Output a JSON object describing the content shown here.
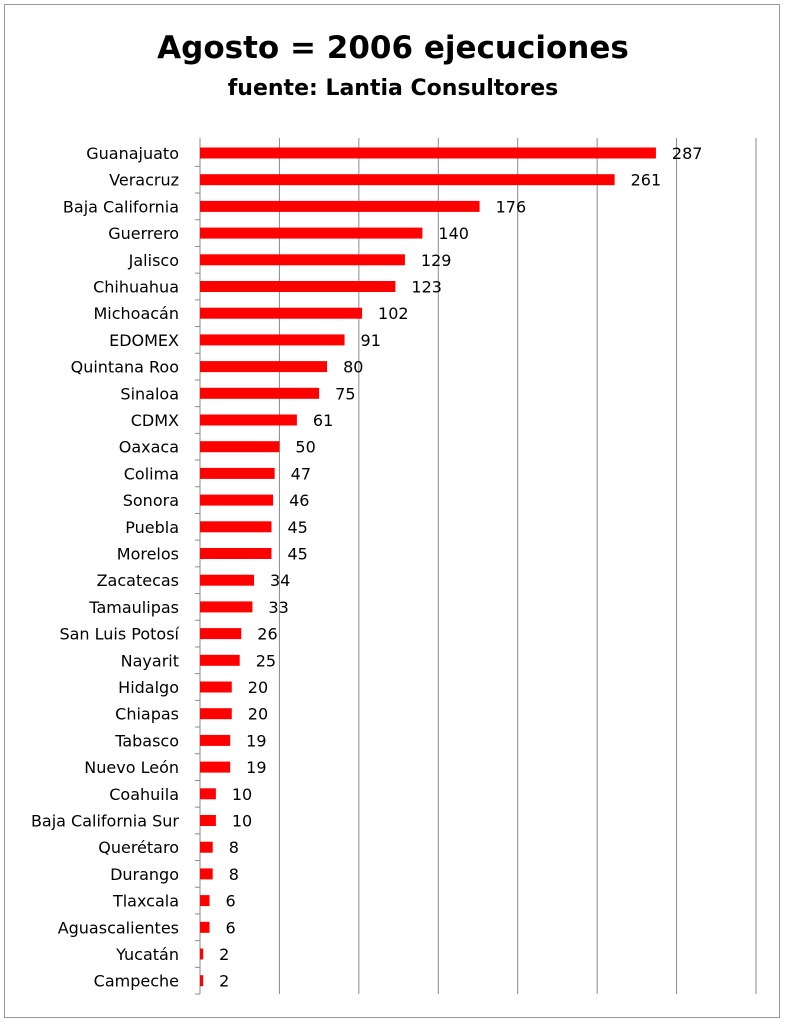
{
  "chart_data": {
    "type": "bar",
    "orientation": "horizontal",
    "title": "Agosto = 2006 ejecuciones",
    "subtitle": "fuente: Lantia Consultores",
    "xlabel": "",
    "ylabel": "",
    "xlim": [
      0,
      350
    ],
    "grid": true,
    "legend": "none",
    "bar_color": "#ff0000",
    "categories": [
      "Guanajuato",
      "Veracruz",
      "Baja California",
      "Guerrero",
      "Jalisco",
      "Chihuahua",
      "Michoacán",
      "EDOMEX",
      "Quintana Roo",
      "Sinaloa",
      "CDMX",
      "Oaxaca",
      "Colima",
      "Sonora",
      "Puebla",
      "Morelos",
      "Zacatecas",
      "Tamaulipas",
      "San Luis Potosí",
      "Nayarit",
      "Hidalgo",
      "Chiapas",
      "Tabasco",
      "Nuevo León",
      "Coahuila",
      "Baja California Sur",
      "Querétaro",
      "Durango",
      "Tlaxcala",
      "Aguascalientes",
      "Yucatán",
      "Campeche"
    ],
    "values": [
      287,
      261,
      176,
      140,
      129,
      123,
      102,
      91,
      80,
      75,
      61,
      50,
      47,
      46,
      45,
      45,
      34,
      33,
      26,
      25,
      20,
      20,
      19,
      19,
      10,
      10,
      8,
      8,
      6,
      6,
      2,
      2
    ]
  }
}
